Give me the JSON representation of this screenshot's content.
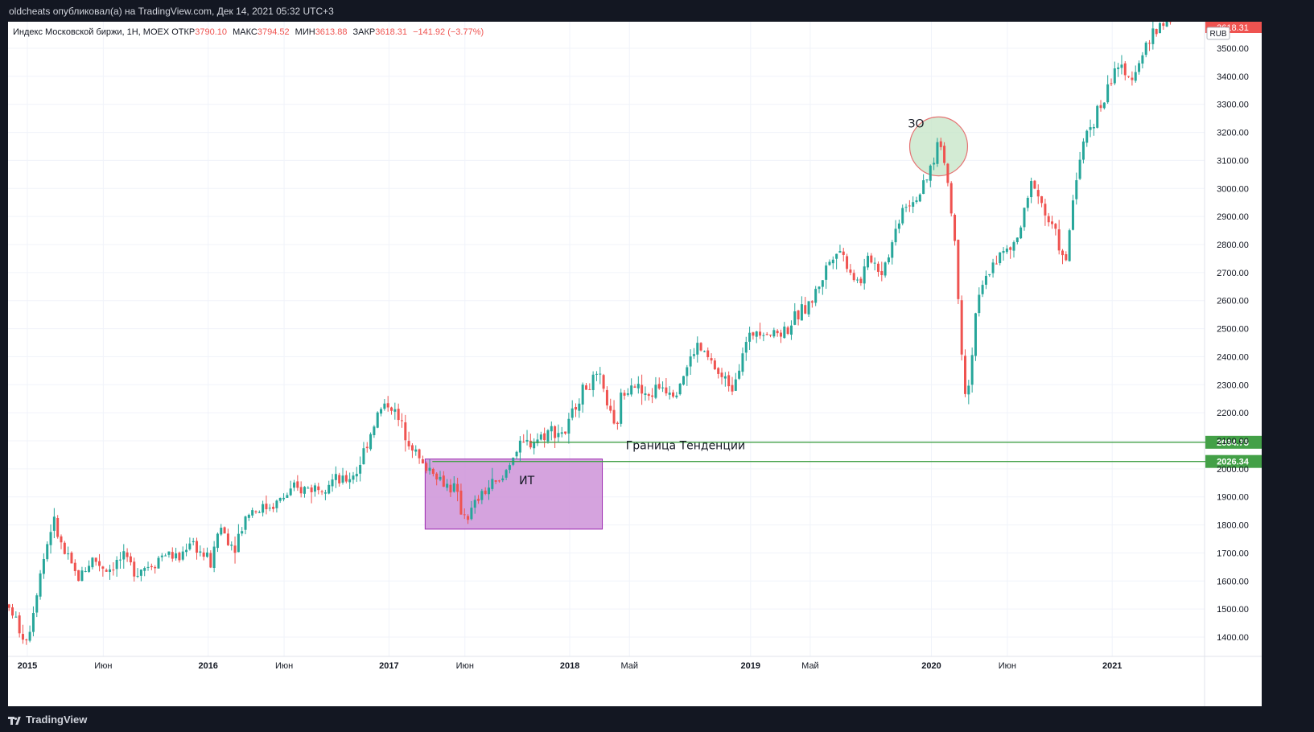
{
  "header": {
    "publisher_line": "oldcheats опубликовал(а) на TradingView.com, Дек 14, 2021 05:32 UTC+3"
  },
  "legend": {
    "symbol": "Индекс Московской биржи, 1Н, MOEX",
    "open_label": "ОТКР",
    "open_value": "3790.10",
    "high_label": "МАКС",
    "high_value": "3794.52",
    "low_label": "МИН",
    "low_value": "3613.88",
    "close_label": "ЗАКР",
    "close_value": "3618.31",
    "change": "−141.92 (−3.77%)"
  },
  "footer": {
    "brand": "TradingView"
  },
  "colors": {
    "up": "#26a69a",
    "down": "#ef5350",
    "level": "#43a047",
    "box_fill": "#ce93d8",
    "box_stroke": "#9c27b0",
    "ellipse_fill": "#c8e6c9",
    "ellipse_stroke": "#e57373"
  },
  "chart_data": {
    "type": "candlestick",
    "currency": "RUB",
    "ylim": [
      1330,
      3620
    ],
    "yticks": [
      1400,
      1500,
      1600,
      1700,
      1800,
      1900,
      2000,
      2100,
      2200,
      2300,
      2400,
      2500,
      2600,
      2700,
      2800,
      2900,
      3000,
      3100,
      3200,
      3300,
      3400,
      3500
    ],
    "x_range": [
      2014.85,
      2021.6
    ],
    "xticks": [
      {
        "label": "2015",
        "t": 2015.0
      },
      {
        "label": "Июн",
        "t": 2015.42
      },
      {
        "label": "2016",
        "t": 2016.0
      },
      {
        "label": "Июн",
        "t": 2016.42
      },
      {
        "label": "2017",
        "t": 2017.0
      },
      {
        "label": "Июн",
        "t": 2017.42
      },
      {
        "label": "2018",
        "t": 2018.0
      },
      {
        "label": "Май",
        "t": 2018.33
      },
      {
        "label": "2019",
        "t": 2019.0
      },
      {
        "label": "Май",
        "t": 2019.33
      },
      {
        "label": "2020",
        "t": 2020.0
      },
      {
        "label": "Июн",
        "t": 2020.42
      },
      {
        "label": "2021",
        "t": 2021.0
      }
    ],
    "anchors": [
      [
        2014.86,
        1490
      ],
      [
        2014.93,
        1500
      ],
      [
        2014.98,
        1420
      ],
      [
        2015.02,
        1390
      ],
      [
        2015.08,
        1600
      ],
      [
        2015.16,
        1820
      ],
      [
        2015.22,
        1700
      ],
      [
        2015.3,
        1610
      ],
      [
        2015.38,
        1680
      ],
      [
        2015.46,
        1640
      ],
      [
        2015.54,
        1680
      ],
      [
        2015.62,
        1640
      ],
      [
        2015.7,
        1660
      ],
      [
        2015.78,
        1700
      ],
      [
        2015.86,
        1680
      ],
      [
        2015.92,
        1750
      ],
      [
        2015.98,
        1700
      ],
      [
        2016.04,
        1660
      ],
      [
        2016.08,
        1800
      ],
      [
        2016.16,
        1720
      ],
      [
        2016.24,
        1850
      ],
      [
        2016.32,
        1860
      ],
      [
        2016.4,
        1880
      ],
      [
        2016.48,
        1920
      ],
      [
        2016.56,
        1930
      ],
      [
        2016.64,
        1940
      ],
      [
        2016.7,
        1960
      ],
      [
        2016.76,
        1950
      ],
      [
        2016.84,
        1990
      ],
      [
        2016.9,
        2100
      ],
      [
        2016.96,
        2200
      ],
      [
        2017.02,
        2240
      ],
      [
        2017.08,
        2160
      ],
      [
        2017.14,
        2100
      ],
      [
        2017.2,
        2010
      ],
      [
        2017.26,
        2000
      ],
      [
        2017.32,
        1950
      ],
      [
        2017.38,
        1930
      ],
      [
        2017.42,
        1850
      ],
      [
        2017.46,
        1830
      ],
      [
        2017.52,
        1900
      ],
      [
        2017.58,
        1940
      ],
      [
        2017.64,
        1950
      ],
      [
        2017.7,
        2050
      ],
      [
        2017.76,
        2080
      ],
      [
        2017.84,
        2110
      ],
      [
        2017.92,
        2140
      ],
      [
        2018.0,
        2130
      ],
      [
        2018.06,
        2250
      ],
      [
        2018.12,
        2300
      ],
      [
        2018.18,
        2320
      ],
      [
        2018.22,
        2250
      ],
      [
        2018.27,
        2120
      ],
      [
        2018.3,
        2250
      ],
      [
        2018.36,
        2320
      ],
      [
        2018.44,
        2250
      ],
      [
        2018.52,
        2300
      ],
      [
        2018.6,
        2280
      ],
      [
        2018.66,
        2350
      ],
      [
        2018.72,
        2440
      ],
      [
        2018.8,
        2380
      ],
      [
        2018.86,
        2320
      ],
      [
        2018.92,
        2300
      ],
      [
        2018.98,
        2430
      ],
      [
        2019.06,
        2510
      ],
      [
        2019.14,
        2480
      ],
      [
        2019.22,
        2500
      ],
      [
        2019.3,
        2560
      ],
      [
        2019.36,
        2600
      ],
      [
        2019.44,
        2720
      ],
      [
        2019.5,
        2800
      ],
      [
        2019.56,
        2720
      ],
      [
        2019.62,
        2660
      ],
      [
        2019.68,
        2760
      ],
      [
        2019.74,
        2700
      ],
      [
        2019.8,
        2800
      ],
      [
        2019.86,
        2940
      ],
      [
        2019.92,
        2960
      ],
      [
        2019.98,
        3000
      ],
      [
        2020.03,
        3100
      ],
      [
        2020.06,
        3180
      ],
      [
        2020.1,
        3080
      ],
      [
        2020.12,
        2960
      ],
      [
        2020.15,
        2800
      ],
      [
        2020.18,
        2500
      ],
      [
        2020.2,
        2280
      ],
      [
        2020.23,
        2300
      ],
      [
        2020.26,
        2550
      ],
      [
        2020.3,
        2640
      ],
      [
        2020.36,
        2740
      ],
      [
        2020.42,
        2770
      ],
      [
        2020.48,
        2790
      ],
      [
        2020.54,
        2920
      ],
      [
        2020.58,
        3040
      ],
      [
        2020.62,
        2960
      ],
      [
        2020.66,
        2890
      ],
      [
        2020.72,
        2820
      ],
      [
        2020.76,
        2700
      ],
      [
        2020.79,
        2900
      ],
      [
        2020.82,
        3050
      ],
      [
        2020.88,
        3200
      ],
      [
        2020.94,
        3280
      ],
      [
        2020.98,
        3320
      ],
      [
        2021.04,
        3450
      ],
      [
        2021.1,
        3380
      ],
      [
        2021.14,
        3420
      ],
      [
        2021.2,
        3500
      ],
      [
        2021.26,
        3560
      ],
      [
        2021.32,
        3620
      ],
      [
        2021.34,
        3610
      ]
    ],
    "levels": [
      {
        "value": 2094.75,
        "label": "2094.75",
        "x_start": 2017.78
      },
      {
        "value": 2026.34,
        "label": "2026.34",
        "x_start": 2017.24
      }
    ],
    "last_price_label": "3618.31",
    "annotations": [
      {
        "type": "text",
        "text": "Граница Тенденции",
        "t": 2018.31,
        "v": 2070
      },
      {
        "type": "text",
        "text": "ЗО",
        "t": 1999.9,
        "v": 3210
      },
      {
        "type": "text",
        "text": "ИТ",
        "t": 2017.72,
        "v": 1945
      },
      {
        "type": "box",
        "t0": 2017.2,
        "t1": 2018.18,
        "v0": 1785,
        "v1": 2035
      },
      {
        "type": "ellipse",
        "t0": 2019.88,
        "t1": 2020.2,
        "v0": 3045,
        "v1": 3255
      }
    ]
  }
}
